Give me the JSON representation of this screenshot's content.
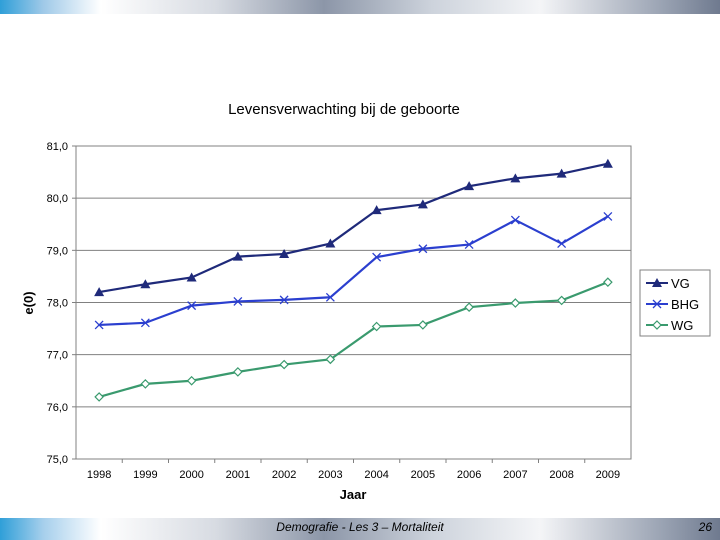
{
  "slide": {
    "footer": "Demografie - Les 3 – Mortaliteit",
    "page_number": "26"
  },
  "chart_data": {
    "type": "line",
    "title": "Levensverwachting bij de geboorte",
    "xlabel": "Jaar",
    "ylabel": "e(0)",
    "ylim": [
      75.0,
      81.0
    ],
    "y_ticks": [
      "75,0",
      "76,0",
      "77,0",
      "78,0",
      "79,0",
      "80,0",
      "81,0"
    ],
    "categories": [
      "1998",
      "1999",
      "2000",
      "2001",
      "2002",
      "2003",
      "2004",
      "2005",
      "2006",
      "2007",
      "2008",
      "2009"
    ],
    "grid": true,
    "legend_position": "right",
    "series": [
      {
        "name": "VG",
        "color": "#1f2a7a",
        "marker": "triangle",
        "values": [
          78.2,
          78.35,
          78.48,
          78.88,
          78.93,
          79.13,
          79.77,
          79.88,
          80.23,
          80.38,
          80.47,
          80.66
        ]
      },
      {
        "name": "BHG",
        "color": "#2b3fcf",
        "marker": "x",
        "values": [
          77.57,
          77.61,
          77.94,
          78.02,
          78.05,
          78.1,
          78.87,
          79.03,
          79.11,
          79.58,
          79.13,
          79.65
        ]
      },
      {
        "name": "WG",
        "color": "#3a9a6e",
        "marker": "diamond",
        "values": [
          76.19,
          76.44,
          76.5,
          76.67,
          76.81,
          76.91,
          77.54,
          77.57,
          77.91,
          77.99,
          78.04,
          78.39
        ]
      }
    ]
  }
}
